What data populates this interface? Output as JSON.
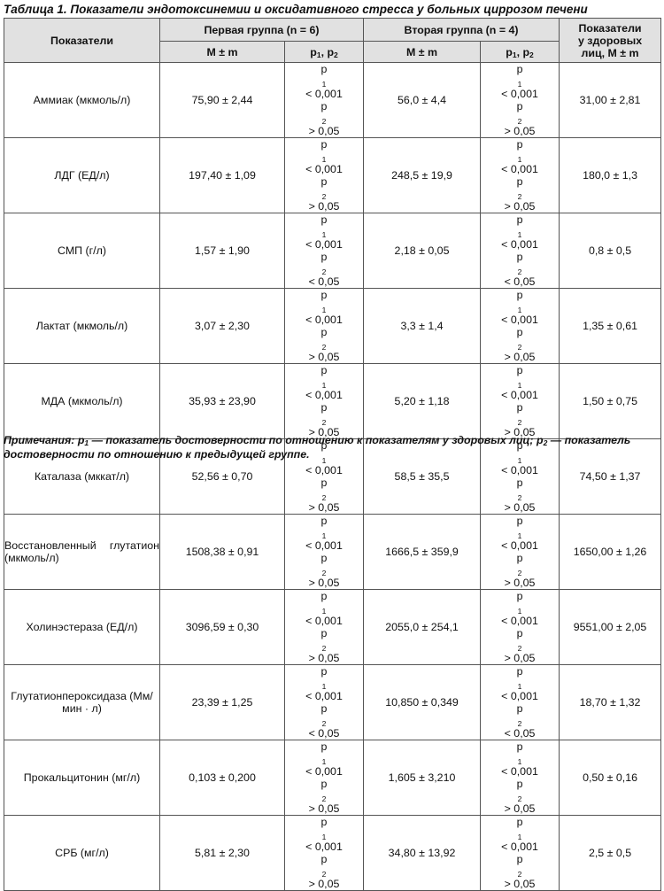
{
  "caption": "Таблица 1. Показатели эндотоксинемии и оксидативного стресса у больных циррозом печени",
  "header": {
    "indicator": "Показатели",
    "group1": "Первая группа (n = 6)",
    "group2": "Вторая группа (n = 4)",
    "healthy": [
      "Показатели",
      "у здоровых",
      "лиц, М ± m"
    ],
    "mm": "М ± m",
    "p_label": "p",
    "p1_idx": "1",
    "p2_idx": "2",
    "p_sep": ", "
  },
  "rows": [
    {
      "name": "Аммиак (мкмоль/л)",
      "g1": "75,90 ± 2,44",
      "g1p1": "< 0,001",
      "g1p2": "> 0,05",
      "g2": "56,0 ± 4,4",
      "g2p1": "< 0,001",
      "g2p2": "> 0,05",
      "h": "31,00 ± 2,81"
    },
    {
      "name": "ЛДГ (ЕД/л)",
      "g1": "197,40 ± 1,09",
      "g1p1": "< 0,001",
      "g1p2": "> 0,05",
      "g2": "248,5 ± 19,9",
      "g2p1": "< 0,001",
      "g2p2": "> 0,05",
      "h": "180,0 ± 1,3"
    },
    {
      "name": "СМП (г/л)",
      "g1": "1,57 ± 1,90",
      "g1p1": "< 0,001",
      "g1p2": "< 0,05",
      "g2": "2,18 ± 0,05",
      "g2p1": "< 0,001",
      "g2p2": "< 0,05",
      "h": "0,8 ± 0,5"
    },
    {
      "name": "Лактат (мкмоль/л)",
      "g1": "3,07 ± 2,30",
      "g1p1": "< 0,001",
      "g1p2": "> 0,05",
      "g2": "3,3 ± 1,4",
      "g2p1": "< 0,001",
      "g2p2": "> 0,05",
      "h": "1,35 ± 0,61"
    },
    {
      "name": "МДА (мкмоль/л)",
      "g1": "35,93 ± 23,90",
      "g1p1": "< 0,001",
      "g1p2": "> 0,05",
      "g2": "5,20 ± 1,18",
      "g2p1": "< 0,001",
      "g2p2": "> 0,05",
      "h": "1,50 ± 0,75"
    },
    {
      "name": "Каталаза (мккат/л)",
      "g1": "52,56 ± 0,70",
      "g1p1": "< 0,001",
      "g1p2": "> 0,05",
      "g2": "58,5 ± 35,5",
      "g2p1": "< 0,001",
      "g2p2": "> 0,05",
      "h": "74,50 ± 1,37"
    },
    {
      "name": "Восстановленный глута­тион (мкмоль/л)",
      "g1": "1508,38 ± 0,91",
      "g1p1": "< 0,001",
      "g1p2": "> 0,05",
      "g2": "1666,5 ± 359,9",
      "g2p1": "< 0,001",
      "g2p2": "> 0,05",
      "h": "1650,00 ± 1,26"
    },
    {
      "name": "Холинэстераза (ЕД/л)",
      "g1": "3096,59 ± 0,30",
      "g1p1": "< 0,001",
      "g1p2": "> 0,05",
      "g2": "2055,0 ± 254,1",
      "g2p1": "< 0,001",
      "g2p2": "> 0,05",
      "h": "9551,00 ± 2,05"
    },
    {
      "name": "Глутатионпероксидаза (Мм/мин · л)",
      "g1": "23,39 ± 1,25",
      "g1p1": "< 0,001",
      "g1p2": "< 0,05",
      "g2": "10,850 ± 0,349",
      "g2p1": "< 0,001",
      "g2p2": "< 0,05",
      "h": "18,70 ± 1,32"
    },
    {
      "name": "Прокальцитонин (мг/л)",
      "g1": "0,103 ± 0,200",
      "g1p1": "< 0,001",
      "g1p2": "> 0,05",
      "g2": "1,605 ± 3,210",
      "g2p1": "< 0,001",
      "g2p2": "> 0,05",
      "h": "0,50 ± 0,16"
    },
    {
      "name": "СРБ (мг/л)",
      "g1": "5,81 ± 2,30",
      "g1p1": "< 0,001",
      "g1p2": "> 0,05",
      "g2": "34,80 ± 13,92",
      "g2p1": "< 0,001",
      "g2p2": "> 0,05",
      "h": "2,5 ± 0,5"
    }
  ],
  "note": {
    "prefix": "Примечания: ",
    "p1_label": "p",
    "p1_idx": "1",
    "p1_text": " — показатель достоверности по отношению к показателям у здоровых лиц; ",
    "p2_label": "p",
    "p2_idx": "2",
    "p2_text": " — показатель достоверности по отношению к предыдущей группе."
  }
}
